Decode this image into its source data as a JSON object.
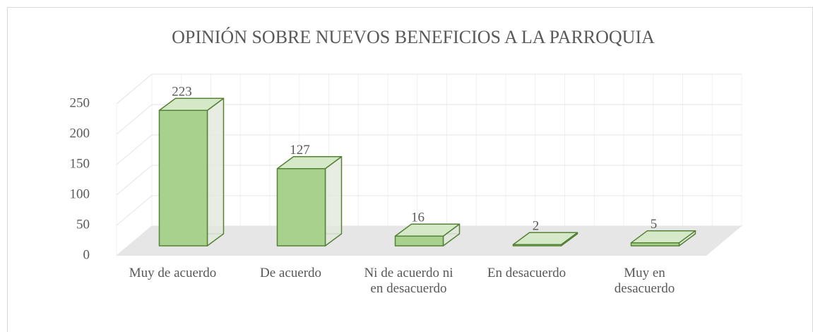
{
  "chart_data": {
    "type": "bar3d",
    "title": "OPINIÓN SOBRE NUEVOS BENEFICIOS A LA PARROQUIA",
    "categories": [
      "Muy de acuerdo",
      "De acuerdo",
      "Ni de acuerdo ni en desacuerdo",
      "En desacuerdo",
      "Muy en desacuerdo"
    ],
    "values": [
      223,
      127,
      16,
      2,
      5
    ],
    "color": "#a9d18e",
    "ylim": [
      0,
      250
    ],
    "yticks": [
      0,
      50,
      100,
      150,
      200,
      250
    ],
    "grid": true
  }
}
